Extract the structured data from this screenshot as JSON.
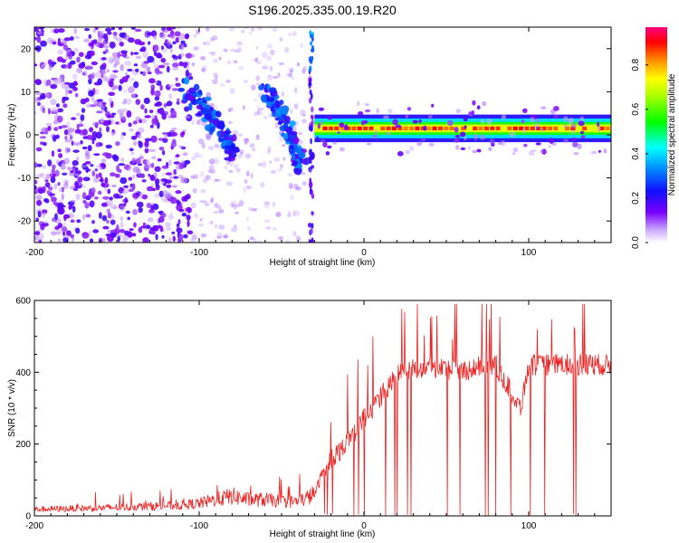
{
  "page_title": "S196.2025.335.00.19.R20",
  "chart_data": [
    {
      "type": "heatmap",
      "title": "S196.2025.335.00.19.R20",
      "xlabel": "Height of straight line (km)",
      "ylabel": "Frequency (Hz)",
      "xlim": [
        -200,
        150
      ],
      "ylim": [
        -25,
        25
      ],
      "x_ticks": [
        -200,
        -100,
        0,
        100
      ],
      "x_tick_labels": [
        "-200",
        "-100",
        "0",
        "100"
      ],
      "y_ticks": [
        -20,
        -10,
        0,
        10,
        20
      ],
      "y_tick_labels": [
        "-20",
        "-10",
        "0",
        "10",
        "20"
      ],
      "colorbar": {
        "label": "Normalized spectral amplitude",
        "range": [
          0,
          0.97
        ],
        "ticks": [
          0.0,
          0.2,
          0.4,
          0.6,
          0.8
        ],
        "tick_labels": [
          "0.0",
          "0.2",
          "0.4",
          "0.6",
          "0.8"
        ],
        "colormap": "rainbow (white → violet → blue → cyan → green → yellow → orange → red → magenta)"
      },
      "features": [
        {
          "name": "diffuse noise",
          "x_range": [
            -200,
            -110
          ],
          "y_range": [
            -25,
            25
          ],
          "amplitude": "0.05-0.25"
        },
        {
          "name": "descending streak A",
          "points": [
            [
              -110,
              12
            ],
            [
              -95,
              5
            ],
            [
              -85,
              0
            ],
            [
              -78,
              -5
            ]
          ],
          "amplitude": "0.2-0.35"
        },
        {
          "name": "descending streak B",
          "points": [
            [
              -60,
              11
            ],
            [
              -50,
              5
            ],
            [
              -42,
              -3
            ],
            [
              -37,
              -8
            ]
          ],
          "amplitude": "0.2-0.35"
        },
        {
          "name": "vertical feature",
          "x": -32,
          "y_range": [
            -25,
            25
          ],
          "amplitude": "0.2-0.3"
        },
        {
          "name": "steady band",
          "x_range": [
            -30,
            150
          ],
          "frequency": 1.5,
          "amplitude_peak": 0.95
        }
      ]
    },
    {
      "type": "line",
      "xlabel": "Height of straight line (km)",
      "ylabel": "SNR (10 * v/v)",
      "xlim": [
        -200,
        150
      ],
      "ylim": [
        0,
        600
      ],
      "x_ticks": [
        -200,
        -100,
        0,
        100
      ],
      "x_tick_labels": [
        "-200",
        "-100",
        "0",
        "100"
      ],
      "y_ticks": [
        0,
        200,
        400,
        600
      ],
      "y_tick_labels": [
        "0",
        "200",
        "400",
        "600"
      ],
      "series": [
        {
          "name": "SNR",
          "color": "#ee2222",
          "x": [
            -200,
            -180,
            -160,
            -140,
            -120,
            -110,
            -100,
            -90,
            -80,
            -70,
            -60,
            -50,
            -40,
            -35,
            -30,
            -25,
            -20,
            -15,
            -10,
            -5,
            0,
            5,
            10,
            15,
            20,
            25,
            30,
            40,
            50,
            60,
            70,
            80,
            85,
            90,
            95,
            100,
            110,
            120,
            130,
            140,
            150
          ],
          "values": [
            18,
            20,
            22,
            25,
            28,
            30,
            35,
            45,
            55,
            45,
            45,
            40,
            40,
            50,
            60,
            120,
            160,
            180,
            210,
            240,
            270,
            300,
            330,
            360,
            390,
            405,
            410,
            415,
            410,
            405,
            415,
            420,
            380,
            340,
            300,
            420,
            420,
            422,
            420,
            422,
            420
          ],
          "spike_range_x": [
            -30,
            150
          ],
          "spike_max": 590,
          "dropout_range_x": [
            -25,
            140
          ],
          "dropout_min": 0
        }
      ]
    }
  ]
}
